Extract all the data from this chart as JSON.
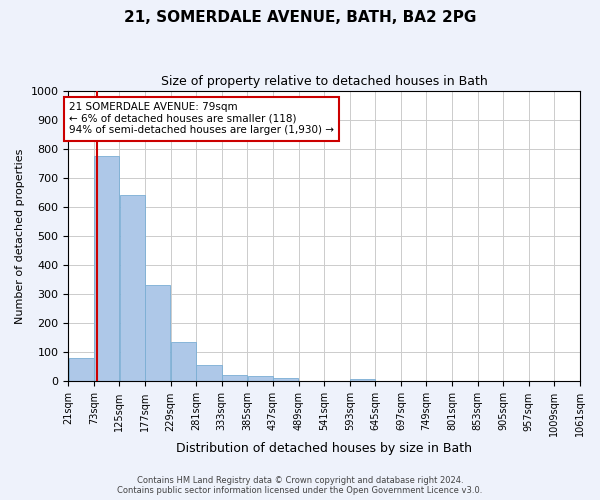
{
  "title_line1": "21, SOMERDALE AVENUE, BATH, BA2 2PG",
  "title_line2": "Size of property relative to detached houses in Bath",
  "xlabel": "Distribution of detached houses by size in Bath",
  "ylabel": "Number of detached properties",
  "annotation_line1": "21 SOMERDALE AVENUE: 79sqm",
  "annotation_line2": "← 6% of detached houses are smaller (118)",
  "annotation_line3": "94% of semi-detached houses are larger (1,930) →",
  "property_size_sqm": 79,
  "bin_edges": [
    21,
    73,
    125,
    177,
    229,
    281,
    333,
    385,
    437,
    489,
    541,
    593,
    645,
    697,
    749,
    801,
    853,
    905,
    957,
    1009,
    1061
  ],
  "bar_values": [
    82,
    775,
    640,
    330,
    135,
    58,
    22,
    20,
    12,
    0,
    0,
    10,
    0,
    0,
    0,
    0,
    0,
    0,
    0,
    0
  ],
  "bar_color": "#aec8e8",
  "bar_edge_color": "#7aaed4",
  "vline_color": "#cc0000",
  "vline_x": 79,
  "annotation_box_color": "#cc0000",
  "ylim": [
    0,
    1000
  ],
  "yticks": [
    0,
    100,
    200,
    300,
    400,
    500,
    600,
    700,
    800,
    900,
    1000
  ],
  "footer_line1": "Contains HM Land Registry data © Crown copyright and database right 2024.",
  "footer_line2": "Contains public sector information licensed under the Open Government Licence v3.0.",
  "background_color": "#eef2fb",
  "plot_bg_color": "#ffffff"
}
